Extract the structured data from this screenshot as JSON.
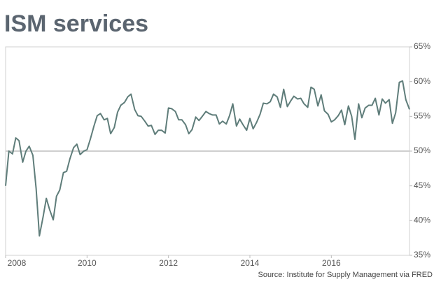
{
  "chart_data": {
    "type": "line",
    "title": "ISM services",
    "source": "Source: Institute for Supply Management via FRED",
    "x": [
      2008.0,
      2008.08,
      2008.17,
      2008.25,
      2008.33,
      2008.42,
      2008.5,
      2008.58,
      2008.67,
      2008.75,
      2008.83,
      2008.92,
      2009.0,
      2009.08,
      2009.17,
      2009.25,
      2009.33,
      2009.42,
      2009.5,
      2009.58,
      2009.67,
      2009.75,
      2009.83,
      2009.92,
      2010.0,
      2010.08,
      2010.17,
      2010.25,
      2010.33,
      2010.42,
      2010.5,
      2010.58,
      2010.67,
      2010.75,
      2010.83,
      2010.92,
      2011.0,
      2011.08,
      2011.17,
      2011.25,
      2011.33,
      2011.42,
      2011.5,
      2011.58,
      2011.67,
      2011.75,
      2011.83,
      2011.92,
      2012.0,
      2012.08,
      2012.17,
      2012.25,
      2012.33,
      2012.42,
      2012.5,
      2012.58,
      2012.67,
      2012.75,
      2012.83,
      2012.92,
      2013.0,
      2013.08,
      2013.17,
      2013.25,
      2013.33,
      2013.42,
      2013.5,
      2013.58,
      2013.67,
      2013.75,
      2013.83,
      2013.92,
      2014.0,
      2014.08,
      2014.17,
      2014.25,
      2014.33,
      2014.42,
      2014.5,
      2014.58,
      2014.67,
      2014.75,
      2014.83,
      2014.92,
      2015.0,
      2015.08,
      2015.17,
      2015.25,
      2015.33,
      2015.42,
      2015.5,
      2015.58,
      2015.67,
      2015.75,
      2015.83,
      2015.92,
      2016.0,
      2016.08,
      2016.17,
      2016.25,
      2016.33,
      2016.42,
      2016.5,
      2016.58,
      2016.67,
      2016.75,
      2016.83,
      2016.92,
      2017.0,
      2017.08,
      2017.17,
      2017.25,
      2017.33,
      2017.42,
      2017.5,
      2017.58,
      2017.67,
      2017.75,
      2017.83,
      2017.92
    ],
    "series": [
      {
        "name": "ISM services",
        "color": "#5f7d7a",
        "values": [
          45.0,
          50.0,
          49.6,
          51.9,
          51.5,
          48.4,
          50.0,
          50.7,
          49.4,
          44.6,
          37.8,
          40.5,
          43.2,
          41.6,
          40.1,
          43.5,
          44.4,
          46.9,
          47.1,
          48.9,
          50.5,
          51.0,
          49.5,
          50.0,
          50.2,
          51.7,
          53.6,
          55.1,
          55.4,
          54.5,
          54.7,
          52.5,
          53.4,
          55.6,
          56.6,
          57.0,
          57.8,
          58.2,
          56.0,
          55.1,
          55.0,
          54.3,
          53.6,
          53.7,
          52.4,
          53.0,
          53.0,
          52.6,
          56.2,
          56.1,
          55.7,
          54.5,
          54.5,
          53.8,
          52.5,
          53.1,
          54.9,
          54.4,
          55.0,
          55.7,
          55.4,
          55.2,
          55.2,
          53.9,
          54.3,
          53.9,
          55.1,
          56.8,
          53.6,
          54.6,
          53.8,
          53.0,
          54.7,
          53.2,
          54.2,
          55.3,
          56.9,
          56.8,
          57.1,
          58.2,
          57.8,
          56.3,
          58.9,
          56.4,
          57.2,
          57.9,
          57.5,
          57.6,
          56.8,
          56.3,
          59.2,
          58.9,
          56.5,
          58.1,
          55.8,
          55.3,
          54.2,
          54.5,
          55.1,
          55.9,
          53.8,
          56.5,
          55.0,
          51.7,
          56.8,
          54.8,
          56.2,
          56.6,
          56.6,
          57.6,
          55.2,
          57.5,
          56.9,
          57.4,
          54.0,
          55.5,
          59.9,
          60.1,
          57.4,
          56.0
        ]
      }
    ],
    "xlim": [
      2008,
      2017.92
    ],
    "xticks": [
      2008,
      2010,
      2012,
      2014,
      2016
    ],
    "ylim": [
      35,
      65
    ],
    "yticks": [
      {
        "value": 35,
        "label": "35%"
      },
      {
        "value": 40,
        "label": "40%"
      },
      {
        "value": 45,
        "label": "45%"
      },
      {
        "value": 50,
        "label": "50%"
      },
      {
        "value": 55,
        "label": "55%"
      },
      {
        "value": 60,
        "label": "60%"
      },
      {
        "value": 65,
        "label": "65%"
      }
    ],
    "hline": 50
  }
}
